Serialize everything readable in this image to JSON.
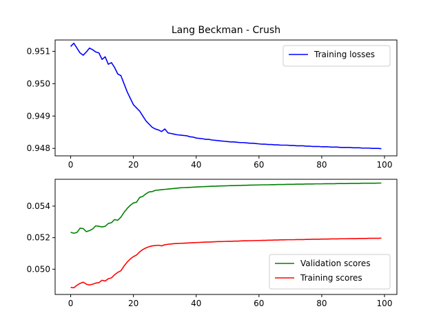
{
  "chart_data": [
    {
      "type": "line",
      "title": "Lang Beckman - Crush",
      "xlabel": "",
      "ylabel": "",
      "xlim": [
        -4.95,
        103.95
      ],
      "ylim": [
        0.94777,
        0.95135
      ],
      "xticks": [
        0,
        20,
        40,
        60,
        80,
        100
      ],
      "yticks": [
        0.948,
        0.949,
        0.95,
        0.951
      ],
      "ytick_labels": [
        "0.948",
        "0.949",
        "0.950",
        "0.951"
      ],
      "legend": "upper-right",
      "series": [
        {
          "name": "Training losses",
          "color": "#0000ff",
          "x_start": 0,
          "values": [
            0.95115,
            0.95125,
            0.9511,
            0.95095,
            0.95088,
            0.95098,
            0.9511,
            0.95105,
            0.95098,
            0.95095,
            0.95075,
            0.95083,
            0.9506,
            0.95065,
            0.9505,
            0.9503,
            0.95025,
            0.95,
            0.94975,
            0.94955,
            0.94935,
            0.94925,
            0.94915,
            0.949,
            0.94885,
            0.94875,
            0.94865,
            0.9486,
            0.94857,
            0.94852,
            0.9486,
            0.94848,
            0.94846,
            0.94844,
            0.94842,
            0.94841,
            0.9484,
            0.94839,
            0.94836,
            0.94835,
            0.94832,
            0.94831,
            0.9483,
            0.94828,
            0.94828,
            0.94826,
            0.94825,
            0.94824,
            0.94823,
            0.94822,
            0.94821,
            0.9482,
            0.9482,
            0.94819,
            0.94818,
            0.94818,
            0.94817,
            0.94816,
            0.94816,
            0.94815,
            0.94814,
            0.94813,
            0.94813,
            0.94812,
            0.94812,
            0.94811,
            0.94811,
            0.9481,
            0.9481,
            0.9481,
            0.94809,
            0.94809,
            0.94808,
            0.94808,
            0.94808,
            0.94807,
            0.94807,
            0.94806,
            0.94806,
            0.94806,
            0.94805,
            0.94805,
            0.94805,
            0.94804,
            0.94804,
            0.94804,
            0.94803,
            0.94803,
            0.94803,
            0.94803,
            0.94802,
            0.94802,
            0.94802,
            0.94801,
            0.94801,
            0.94801,
            0.948,
            0.948,
            0.948,
            0.94799
          ]
        }
      ]
    },
    {
      "type": "line",
      "title": "",
      "xlabel": "",
      "ylabel": "",
      "xlim": [
        -4.95,
        103.95
      ],
      "ylim": [
        0.0484,
        0.0557
      ],
      "xticks": [
        0,
        20,
        40,
        60,
        80,
        100
      ],
      "yticks": [
        0.05,
        0.052,
        0.054
      ],
      "ytick_labels": [
        "0.050",
        "0.052",
        "0.054"
      ],
      "legend": "lower-right",
      "series": [
        {
          "name": "Validation scores",
          "color": "#008000",
          "x_start": 0,
          "values": [
            0.05234,
            0.05228,
            0.05233,
            0.0526,
            0.05258,
            0.05238,
            0.05245,
            0.05255,
            0.05275,
            0.05272,
            0.05268,
            0.05272,
            0.0529,
            0.05295,
            0.05315,
            0.0531,
            0.0533,
            0.0536,
            0.05385,
            0.05405,
            0.0542,
            0.05425,
            0.05455,
            0.05462,
            0.05478,
            0.0549,
            0.05492,
            0.055,
            0.05502,
            0.05504,
            0.05506,
            0.05508,
            0.0551,
            0.05512,
            0.05514,
            0.05516,
            0.05517,
            0.05518,
            0.05519,
            0.0552,
            0.05521,
            0.05522,
            0.05523,
            0.05524,
            0.05525,
            0.05526,
            0.05526,
            0.05527,
            0.05528,
            0.05528,
            0.05529,
            0.0553,
            0.0553,
            0.05531,
            0.05531,
            0.05532,
            0.05532,
            0.05533,
            0.05533,
            0.05534,
            0.05534,
            0.05535,
            0.05535,
            0.05535,
            0.05536,
            0.05536,
            0.05537,
            0.05537,
            0.05537,
            0.05538,
            0.05538,
            0.05538,
            0.05539,
            0.05539,
            0.05539,
            0.0554,
            0.0554,
            0.0554,
            0.05541,
            0.05541,
            0.05541,
            0.05542,
            0.05542,
            0.05542,
            0.05542,
            0.05543,
            0.05543,
            0.05543,
            0.05543,
            0.05544,
            0.05544,
            0.05544,
            0.05544,
            0.05545,
            0.05545,
            0.05545,
            0.05545,
            0.05545,
            0.05546,
            0.05546
          ]
        },
        {
          "name": "Training scores",
          "color": "#ff0000",
          "x_start": 0,
          "values": [
            0.04885,
            0.04882,
            0.04898,
            0.0491,
            0.04918,
            0.04905,
            0.049,
            0.04905,
            0.04912,
            0.04915,
            0.0493,
            0.04925,
            0.0494,
            0.04945,
            0.04965,
            0.0498,
            0.0499,
            0.0502,
            0.05045,
            0.05065,
            0.0508,
            0.0509,
            0.0511,
            0.05125,
            0.05135,
            0.05143,
            0.05148,
            0.0515,
            0.05152,
            0.05148,
            0.05155,
            0.05158,
            0.0516,
            0.05162,
            0.05163,
            0.05164,
            0.05165,
            0.05166,
            0.05167,
            0.05168,
            0.05169,
            0.0517,
            0.05171,
            0.05172,
            0.05172,
            0.05173,
            0.05174,
            0.05175,
            0.05175,
            0.05176,
            0.05177,
            0.05177,
            0.05178,
            0.05178,
            0.05179,
            0.0518,
            0.0518,
            0.05181,
            0.05181,
            0.05182,
            0.05182,
            0.05183,
            0.05183,
            0.05184,
            0.05184,
            0.05185,
            0.05185,
            0.05186,
            0.05186,
            0.05187,
            0.05187,
            0.05187,
            0.05188,
            0.05188,
            0.05188,
            0.05189,
            0.05189,
            0.0519,
            0.0519,
            0.0519,
            0.05191,
            0.05191,
            0.05191,
            0.05192,
            0.05192,
            0.05192,
            0.05193,
            0.05193,
            0.05193,
            0.05194,
            0.05194,
            0.05194,
            0.05195,
            0.05195,
            0.05195,
            0.05196,
            0.05196,
            0.05196,
            0.05196,
            0.05197
          ]
        }
      ]
    }
  ]
}
